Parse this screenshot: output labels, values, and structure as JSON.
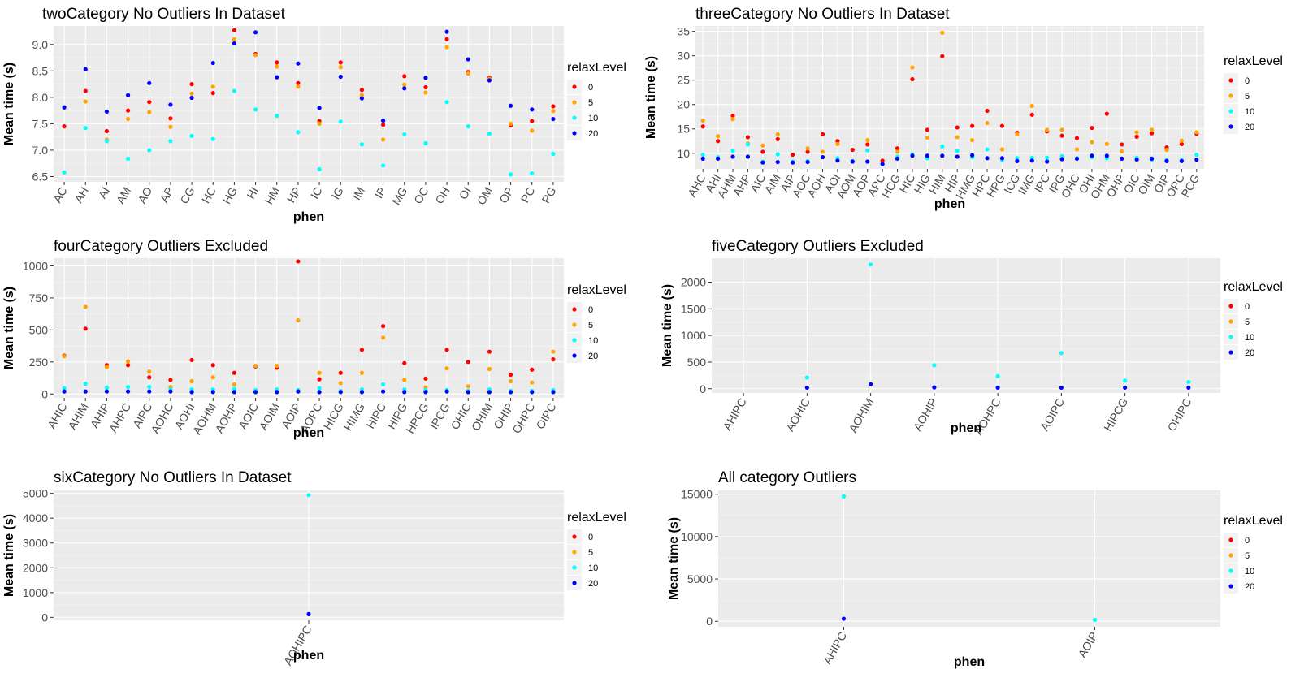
{
  "chart_data": [
    {
      "type": "scatter",
      "title": "twoCategory No Outliers In Dataset",
      "xlabel": "phen",
      "ylabel": "Mean time (s)",
      "ylim": [
        6.4,
        9.35
      ],
      "yticks": [
        6.5,
        7.0,
        7.5,
        8.0,
        8.5,
        9.0
      ],
      "ytick_labels": [
        "6.5",
        "7.0",
        "7.5",
        "8.0",
        "8.5",
        "9.0"
      ],
      "categories": [
        "AC",
        "AH",
        "AI",
        "AM",
        "AO",
        "AP",
        "CG",
        "HC",
        "HG",
        "HI",
        "HM",
        "HP",
        "IC",
        "IG",
        "IM",
        "IP",
        "MG",
        "OC",
        "OH",
        "OI",
        "OM",
        "OP",
        "PC",
        "PG"
      ],
      "series": [
        {
          "name": "0",
          "values": [
            7.45,
            8.12,
            7.36,
            7.75,
            7.91,
            7.6,
            8.25,
            8.08,
            9.27,
            8.82,
            8.66,
            8.27,
            7.55,
            8.66,
            8.14,
            7.48,
            8.4,
            8.19,
            9.1,
            8.48,
            8.37,
            7.47,
            7.55,
            7.83
          ]
        },
        {
          "name": "5",
          "values": [
            null,
            7.92,
            7.2,
            7.59,
            7.72,
            7.44,
            8.07,
            8.2,
            9.1,
            8.8,
            8.58,
            8.2,
            7.5,
            8.57,
            8.04,
            7.2,
            8.24,
            8.09,
            8.95,
            8.45,
            8.35,
            7.5,
            7.37,
            7.74
          ]
        },
        {
          "name": "10",
          "values": [
            6.58,
            7.42,
            7.17,
            6.84,
            7.0,
            7.17,
            7.27,
            7.21,
            8.12,
            7.77,
            7.65,
            7.34,
            6.64,
            7.54,
            7.11,
            6.71,
            7.3,
            7.13,
            7.91,
            7.45,
            7.31,
            6.54,
            6.56,
            6.93
          ]
        },
        {
          "name": "20",
          "values": [
            7.81,
            8.53,
            7.73,
            8.04,
            8.27,
            7.86,
            7.99,
            8.65,
            9.02,
            9.23,
            8.38,
            8.64,
            7.8,
            8.39,
            7.98,
            7.56,
            8.17,
            8.37,
            9.24,
            8.72,
            8.32,
            7.84,
            7.77,
            7.59
          ]
        }
      ],
      "legend": {
        "title": "relaxLevel",
        "position": "right",
        "labels": [
          "0",
          "5",
          "10",
          "20"
        ]
      },
      "grid": true
    },
    {
      "type": "scatter",
      "title": "threeCategory No Outliers In Dataset",
      "xlabel": "phen",
      "ylabel": "Mean time (s)",
      "ylim": [
        6.8,
        36.1
      ],
      "yticks": [
        10,
        15,
        20,
        25,
        30,
        35
      ],
      "ytick_labels": [
        "10",
        "15",
        "20",
        "25",
        "30",
        "35"
      ],
      "categories": [
        "AHC",
        "AHI",
        "AHM",
        "AHP",
        "AIC",
        "AIM",
        "AIP",
        "AOC",
        "AOH",
        "AOI",
        "AOM",
        "AOP",
        "APC",
        "HCG",
        "HIC",
        "HIG",
        "HIM",
        "HIP",
        "HMG",
        "HPC",
        "HPG",
        "ICG",
        "IMG",
        "IPC",
        "IPG",
        "OHC",
        "OHI",
        "OHM",
        "OHP",
        "OIC",
        "OIM",
        "OIP",
        "OPC",
        "PCG"
      ],
      "series": [
        {
          "name": "0",
          "values": [
            15.5,
            12.5,
            17.7,
            13.3,
            10.3,
            12.9,
            9.7,
            10.3,
            13.9,
            12.5,
            10.7,
            11.8,
            8.5,
            11.0,
            25.2,
            14.8,
            29.9,
            15.3,
            15.6,
            18.7,
            15.6,
            14.2,
            17.9,
            14.5,
            13.6,
            13.1,
            15.2,
            18.1,
            11.8,
            13.4,
            14.1,
            11.2,
            11.9,
            14.0
          ]
        },
        {
          "name": "5",
          "values": [
            16.7,
            13.5,
            17.0,
            12.0,
            11.6,
            13.9,
            null,
            11.0,
            10.3,
            11.9,
            null,
            12.7,
            null,
            10.3,
            27.6,
            13.2,
            34.7,
            13.3,
            12.7,
            16.2,
            10.8,
            13.9,
            19.7,
            14.8,
            14.8,
            10.8,
            12.3,
            11.9,
            10.4,
            14.3,
            14.8,
            10.7,
            12.6,
            14.3
          ]
        },
        {
          "name": "10",
          "values": [
            9.7,
            9.2,
            10.5,
            11.8,
            8.3,
            9.8,
            8.3,
            8.4,
            9.2,
            9.0,
            8.4,
            10.6,
            7.8,
            9.3,
            9.8,
            9.0,
            11.4,
            10.5,
            9.2,
            10.8,
            8.6,
            9.0,
            9.1,
            9.1,
            9.4,
            9.0,
            9.2,
            9.0,
            8.9,
            9.1,
            8.7,
            8.6,
            8.6,
            9.7
          ]
        },
        {
          "name": "20",
          "values": [
            8.9,
            8.9,
            9.3,
            9.3,
            8.1,
            8.2,
            8.1,
            8.2,
            9.2,
            8.5,
            8.3,
            8.3,
            7.8,
            8.9,
            9.5,
            9.5,
            9.5,
            9.3,
            9.6,
            9.0,
            9.0,
            8.4,
            8.5,
            8.3,
            8.8,
            8.9,
            9.5,
            9.5,
            8.9,
            8.7,
            8.9,
            8.4,
            8.4,
            8.7
          ]
        }
      ],
      "legend": {
        "title": "relaxLevel",
        "position": "right",
        "labels": [
          "0",
          "5",
          "10",
          "20"
        ]
      },
      "grid": true
    },
    {
      "type": "scatter",
      "title": "fourCategory Outliers Excluded",
      "xlabel": "phen",
      "ylabel": "Mean time (s)",
      "ylim": [
        -30,
        1060
      ],
      "yticks": [
        0,
        250,
        500,
        750,
        1000
      ],
      "ytick_labels": [
        "0",
        "250",
        "500",
        "750",
        "1000"
      ],
      "categories": [
        "AHIC",
        "AHIM",
        "AHIP",
        "AHPC",
        "AIPC",
        "AOHC",
        "AOHI",
        "AOHM",
        "AOHP",
        "AOIC",
        "AOIM",
        "AOIP",
        "AOPC",
        "HICG",
        "HIMG",
        "HIPC",
        "HIPG",
        "HPCG",
        "IPCG",
        "OHIC",
        "OHIM",
        "OHIP",
        "OHPC",
        "OIPC"
      ],
      "series": [
        {
          "name": "0",
          "values": [
            300,
            510,
            225,
            225,
            130,
            110,
            265,
            225,
            165,
            215,
            205,
            1035,
            115,
            165,
            345,
            530,
            240,
            120,
            345,
            250,
            330,
            150,
            190,
            270
          ]
        },
        {
          "name": "5",
          "values": [
            295,
            680,
            210,
            255,
            175,
            55,
            100,
            130,
            75,
            220,
            220,
            575,
            165,
            85,
            165,
            440,
            110,
            50,
            200,
            60,
            195,
            100,
            90,
            330
          ]
        },
        {
          "name": "10",
          "values": [
            45,
            80,
            50,
            55,
            55,
            35,
            35,
            35,
            40,
            30,
            35,
            30,
            45,
            25,
            35,
            75,
            35,
            30,
            30,
            25,
            35,
            25,
            25,
            30
          ]
        },
        {
          "name": "20",
          "values": [
            20,
            20,
            20,
            20,
            20,
            20,
            15,
            15,
            15,
            15,
            15,
            20,
            15,
            15,
            15,
            20,
            15,
            15,
            20,
            15,
            15,
            15,
            15,
            15
          ]
        }
      ],
      "legend": {
        "title": "relaxLevel",
        "position": "right",
        "labels": [
          "0",
          "5",
          "10",
          "20"
        ]
      },
      "grid": true
    },
    {
      "type": "scatter",
      "title": "fiveCategory Outliers Excluded",
      "xlabel": "phen",
      "ylabel": "Mean time (s)",
      "ylim": [
        -80,
        2450
      ],
      "yticks": [
        0,
        500,
        1000,
        1500,
        2000
      ],
      "ytick_labels": [
        "0",
        "500",
        "1000",
        "1500",
        "2000"
      ],
      "categories": [
        "AHIPC",
        "AOHIC",
        "AOHIM",
        "AOHIP",
        "AOHPC",
        "AOIPC",
        "HIPCG",
        "OHIPC"
      ],
      "series": [
        {
          "name": "0",
          "values": [
            null,
            null,
            null,
            null,
            null,
            null,
            null,
            null
          ]
        },
        {
          "name": "5",
          "values": [
            null,
            null,
            null,
            null,
            null,
            null,
            null,
            null
          ]
        },
        {
          "name": "10",
          "values": [
            null,
            210,
            2330,
            440,
            235,
            670,
            150,
            125
          ]
        },
        {
          "name": "20",
          "values": [
            null,
            20,
            85,
            25,
            20,
            20,
            20,
            20
          ]
        }
      ],
      "legend": {
        "title": "relaxLevel",
        "position": "right",
        "labels": [
          "0",
          "5",
          "10",
          "20"
        ]
      },
      "grid": true
    },
    {
      "type": "scatter",
      "title": "sixCategory No Outliers In Dataset",
      "xlabel": "phen",
      "ylabel": "Mean time (s)",
      "ylim": [
        -120,
        5120
      ],
      "yticks": [
        0,
        1000,
        2000,
        3000,
        4000,
        5000
      ],
      "ytick_labels": [
        "0",
        "1000",
        "2000",
        "3000",
        "4000",
        "5000"
      ],
      "categories": [
        "AOHIPC"
      ],
      "series": [
        {
          "name": "0",
          "values": [
            null
          ]
        },
        {
          "name": "5",
          "values": [
            null
          ]
        },
        {
          "name": "10",
          "values": [
            4930
          ]
        },
        {
          "name": "20",
          "values": [
            130
          ]
        }
      ],
      "legend": {
        "title": "relaxLevel",
        "position": "right",
        "labels": [
          "0",
          "5",
          "10",
          "20"
        ]
      },
      "grid": true
    },
    {
      "type": "scatter",
      "title": "All category Outliers",
      "xlabel": "phen",
      "ylabel": "Mean time (s)",
      "ylim": [
        -650,
        15450
      ],
      "yticks": [
        0,
        5000,
        10000,
        15000
      ],
      "ytick_labels": [
        "0",
        "5000",
        "10000",
        "15000"
      ],
      "categories": [
        "AHIPC",
        "AOIP"
      ],
      "series": [
        {
          "name": "0",
          "values": [
            null,
            null
          ]
        },
        {
          "name": "5",
          "values": [
            null,
            null
          ]
        },
        {
          "name": "10",
          "values": [
            14750,
            170
          ]
        },
        {
          "name": "20",
          "values": [
            300,
            null
          ]
        }
      ],
      "legend": {
        "title": "relaxLevel",
        "position": "right",
        "labels": [
          "0",
          "5",
          "10",
          "20"
        ]
      },
      "grid": true
    }
  ],
  "colors": {
    "series": {
      "0": "#ff0000",
      "5": "#ffa500",
      "10": "#00ffff",
      "20": "#0000ff"
    },
    "panel_bg": "#ebebeb",
    "grid_major": "#ffffff",
    "text": "#000000",
    "tick_text": "#4d4d4d"
  }
}
